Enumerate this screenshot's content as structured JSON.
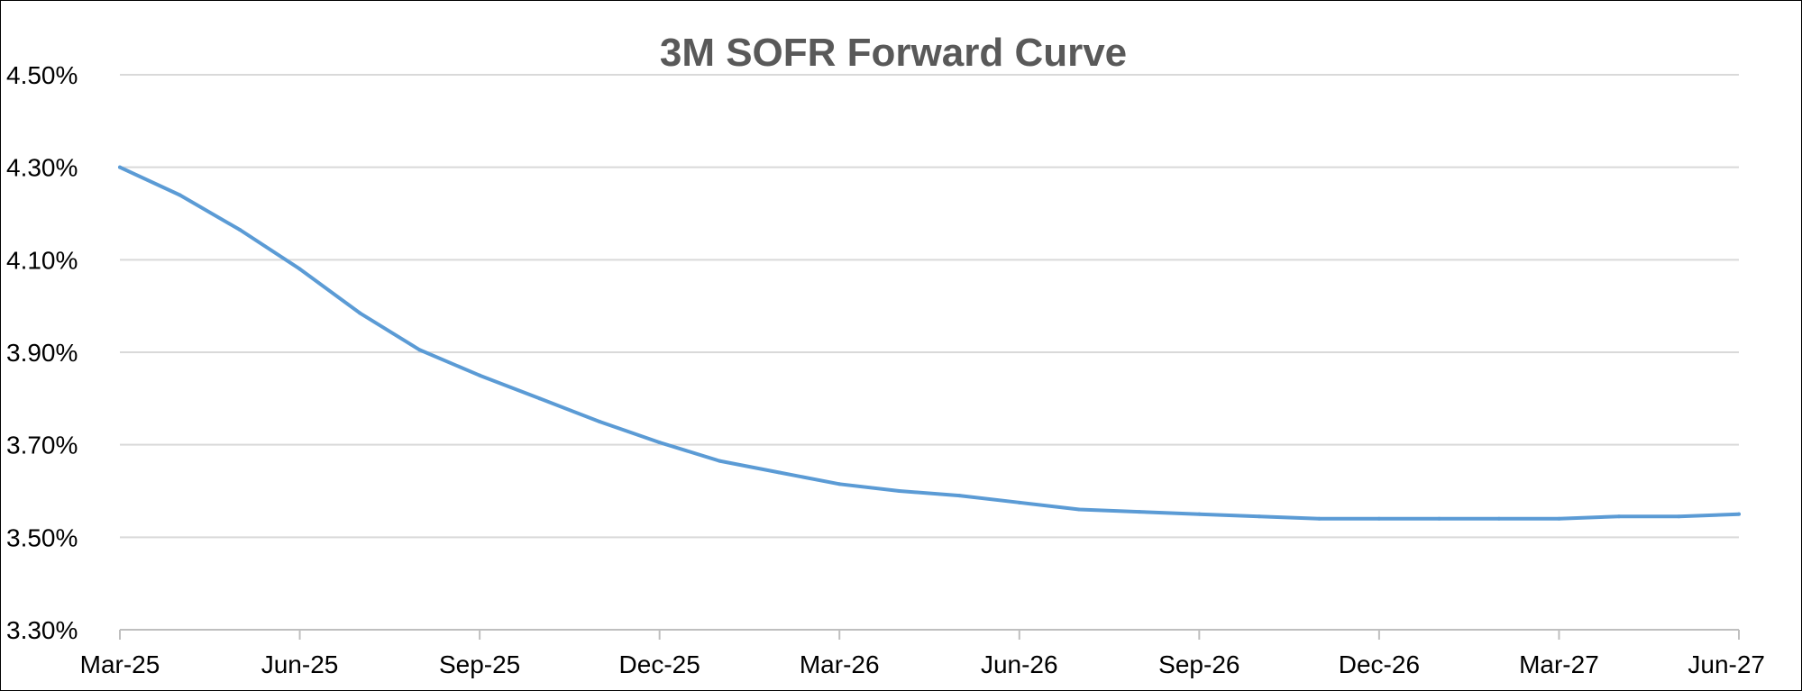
{
  "chart_data": {
    "type": "line",
    "title": "3M SOFR Forward Curve",
    "xlabel": "",
    "ylabel": "",
    "x_tick_labels": [
      "Mar-25",
      "Jun-25",
      "Sep-25",
      "Dec-25",
      "Mar-26",
      "Jun-26",
      "Sep-26",
      "Dec-26",
      "Mar-27",
      "Jun-27"
    ],
    "y_tick_labels": [
      "3.30%",
      "3.50%",
      "3.70%",
      "3.90%",
      "4.10%",
      "4.30%",
      "4.50%"
    ],
    "y_ticks": [
      3.3,
      3.5,
      3.7,
      3.9,
      4.1,
      4.3,
      4.5
    ],
    "ylim": [
      3.3,
      4.5
    ],
    "xlim": [
      "2025-03",
      "2027-06"
    ],
    "grid": true,
    "series": [
      {
        "x": [
          "2025-03",
          "2025-04",
          "2025-05",
          "2025-06",
          "2025-07",
          "2025-08",
          "2025-09",
          "2025-10",
          "2025-11",
          "2025-12",
          "2026-01",
          "2026-02",
          "2026-03",
          "2026-04",
          "2026-05",
          "2026-06",
          "2026-07",
          "2026-08",
          "2026-09",
          "2026-10",
          "2026-11",
          "2026-12",
          "2027-01",
          "2027-02",
          "2027-03",
          "2027-04",
          "2027-05",
          "2027-06"
        ],
        "values": [
          4.3,
          4.24,
          4.165,
          4.08,
          3.985,
          3.905,
          3.85,
          3.8,
          3.75,
          3.705,
          3.665,
          3.64,
          3.615,
          3.6,
          3.59,
          3.575,
          3.56,
          3.555,
          3.55,
          3.545,
          3.54,
          3.54,
          3.54,
          3.54,
          3.54,
          3.545,
          3.545,
          3.55
        ],
        "color": "#5b9bd5"
      }
    ]
  }
}
